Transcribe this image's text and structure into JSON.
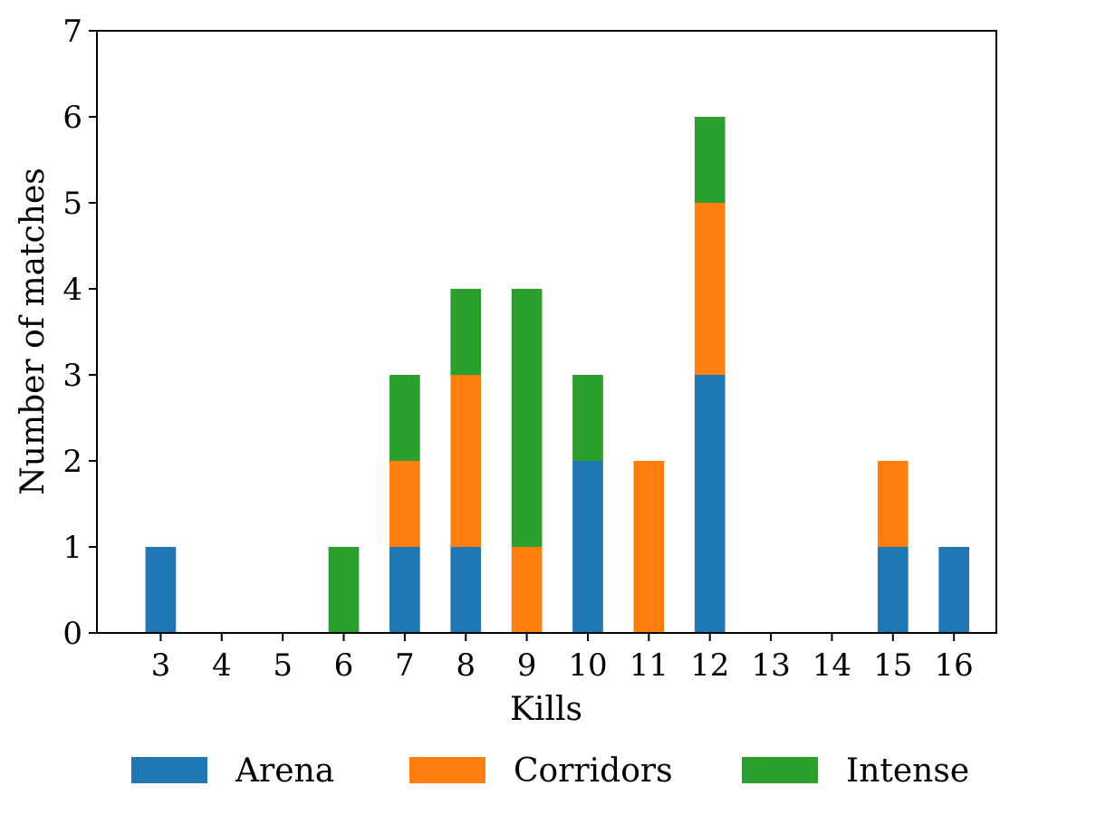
{
  "chart_data": {
    "type": "bar",
    "stacked": true,
    "xlabel": "Kills",
    "ylabel": "Number of matches",
    "ylim": [
      0,
      7
    ],
    "yticks": [
      0,
      1,
      2,
      3,
      4,
      5,
      6,
      7
    ],
    "categories": [
      "3",
      "4",
      "5",
      "6",
      "7",
      "8",
      "9",
      "10",
      "11",
      "12",
      "13",
      "14",
      "15",
      "16"
    ],
    "series": [
      {
        "name": "Arena",
        "color": "#1f77b4",
        "values": [
          1,
          0,
          0,
          0,
          1,
          1,
          0,
          2,
          0,
          3,
          0,
          0,
          1,
          1
        ]
      },
      {
        "name": "Corridors",
        "color": "#ff7f0e",
        "values": [
          0,
          0,
          0,
          0,
          1,
          2,
          1,
          0,
          2,
          2,
          0,
          0,
          1,
          0
        ]
      },
      {
        "name": "Intense",
        "color": "#2ca02c",
        "values": [
          0,
          0,
          0,
          1,
          1,
          1,
          3,
          1,
          0,
          1,
          0,
          0,
          0,
          0
        ]
      }
    ],
    "grid": false,
    "legend_position": "bottom-center"
  }
}
